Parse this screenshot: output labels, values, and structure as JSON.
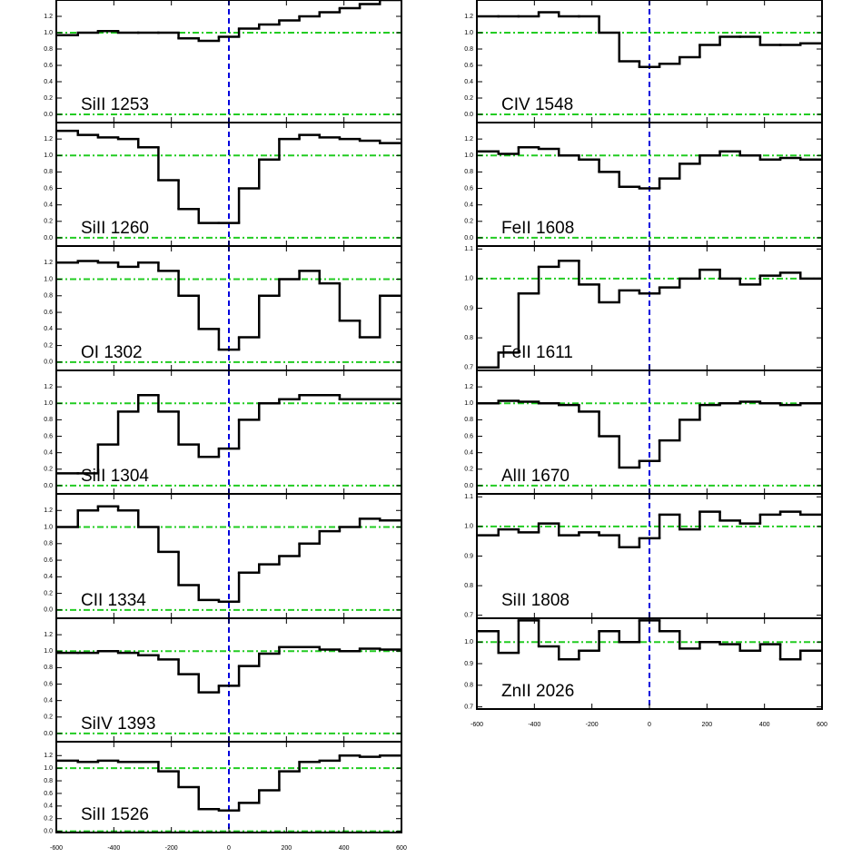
{
  "chart_data": [
    {
      "type": "step",
      "label": "SiII 1253",
      "xlim": [
        -600,
        600
      ],
      "ylim": [
        -0.1,
        1.4
      ],
      "xticks": [
        -600,
        -400,
        -200,
        0,
        200,
        400,
        600
      ],
      "yticks": [
        {
          "value": 0,
          "label": "0.0"
        },
        0.2,
        0.4,
        0.6,
        0.8,
        {
          "value": 1,
          "label": "1.0"
        },
        1.2
      ],
      "hlines": [
        0,
        1
      ],
      "vline": 0,
      "color": "#000000",
      "x": [
        -560,
        -490,
        -420,
        -350,
        -280,
        -210,
        -140,
        -70,
        0,
        70,
        140,
        210,
        280,
        350,
        420,
        490,
        560
      ],
      "values": [
        0.97,
        1.0,
        1.02,
        1.0,
        1.0,
        1.0,
        0.93,
        0.9,
        0.95,
        1.05,
        1.1,
        1.15,
        1.2,
        1.25,
        1.3,
        1.35,
        1.4
      ]
    },
    {
      "type": "step",
      "label": "SiII 1260",
      "xlim": [
        -600,
        600
      ],
      "ylim": [
        -0.1,
        1.4
      ],
      "xticks": [
        -600,
        -400,
        -200,
        0,
        200,
        400,
        600
      ],
      "yticks": [
        {
          "value": 0,
          "label": "0.0"
        },
        0.2,
        0.4,
        0.6,
        0.8,
        {
          "value": 1,
          "label": "1.0"
        },
        1.2
      ],
      "hlines": [
        0,
        1
      ],
      "vline": 0,
      "color": "#000000",
      "x": [
        -560,
        -490,
        -420,
        -350,
        -280,
        -210,
        -140,
        -70,
        0,
        70,
        140,
        210,
        280,
        350,
        420,
        490,
        560
      ],
      "values": [
        1.3,
        1.25,
        1.22,
        1.2,
        1.1,
        0.7,
        0.35,
        0.18,
        0.18,
        0.6,
        0.95,
        1.2,
        1.25,
        1.22,
        1.2,
        1.18,
        1.15
      ]
    },
    {
      "type": "step",
      "label": "OI 1302",
      "xlim": [
        -600,
        600
      ],
      "ylim": [
        -0.1,
        1.4
      ],
      "xticks": [
        -600,
        -400,
        -200,
        0,
        200,
        400,
        600
      ],
      "yticks": [
        {
          "value": 0,
          "label": "0.0"
        },
        0.2,
        0.4,
        0.6,
        0.8,
        {
          "value": 1,
          "label": "1.0"
        },
        1.2
      ],
      "hlines": [
        0,
        1
      ],
      "vline": 0,
      "color": "#000000",
      "x": [
        -560,
        -490,
        -420,
        -350,
        -280,
        -210,
        -140,
        -70,
        0,
        70,
        140,
        210,
        280,
        350,
        420,
        490,
        560
      ],
      "values": [
        1.2,
        1.22,
        1.2,
        1.15,
        1.2,
        1.1,
        0.8,
        0.4,
        0.15,
        0.3,
        0.8,
        1.0,
        1.1,
        0.95,
        0.5,
        0.3,
        0.8
      ]
    },
    {
      "type": "step",
      "label": "SiII 1304",
      "xlim": [
        -600,
        600
      ],
      "ylim": [
        -0.1,
        1.4
      ],
      "xticks": [
        -600,
        -400,
        -200,
        0,
        200,
        400,
        600
      ],
      "yticks": [
        {
          "value": 0,
          "label": "0.0"
        },
        0.2,
        0.4,
        0.6,
        0.8,
        {
          "value": 1,
          "label": "1.0"
        },
        1.2
      ],
      "hlines": [
        0,
        1
      ],
      "vline": 0,
      "color": "#000000",
      "x": [
        -560,
        -490,
        -420,
        -350,
        -280,
        -210,
        -140,
        -70,
        0,
        70,
        140,
        210,
        280,
        350,
        420,
        490,
        560
      ],
      "values": [
        0.15,
        0.15,
        0.5,
        0.9,
        1.1,
        0.9,
        0.5,
        0.35,
        0.45,
        0.8,
        1.0,
        1.05,
        1.1,
        1.1,
        1.05,
        1.05,
        1.05
      ]
    },
    {
      "type": "step",
      "label": "CII 1334",
      "xlim": [
        -600,
        600
      ],
      "ylim": [
        -0.1,
        1.4
      ],
      "xticks": [
        -600,
        -400,
        -200,
        0,
        200,
        400,
        600
      ],
      "yticks": [
        {
          "value": 0,
          "label": "0.0"
        },
        0.2,
        0.4,
        0.6,
        0.8,
        {
          "value": 1,
          "label": "1.0"
        },
        1.2
      ],
      "hlines": [
        0,
        1
      ],
      "vline": 0,
      "color": "#000000",
      "x": [
        -560,
        -490,
        -420,
        -350,
        -280,
        -210,
        -140,
        -70,
        0,
        70,
        140,
        210,
        280,
        350,
        420,
        490,
        560
      ],
      "values": [
        1.0,
        1.2,
        1.25,
        1.2,
        1.0,
        0.7,
        0.3,
        0.12,
        0.1,
        0.45,
        0.55,
        0.65,
        0.8,
        0.95,
        1.0,
        1.1,
        1.08
      ]
    },
    {
      "type": "step",
      "label": "SiIV 1393",
      "xlim": [
        -600,
        600
      ],
      "ylim": [
        -0.1,
        1.4
      ],
      "xticks": [
        -600,
        -400,
        -200,
        0,
        200,
        400,
        600
      ],
      "yticks": [
        {
          "value": 0,
          "label": "0.0"
        },
        0.2,
        0.4,
        0.6,
        0.8,
        {
          "value": 1,
          "label": "1.0"
        },
        1.2
      ],
      "hlines": [
        0,
        1
      ],
      "vline": 0,
      "color": "#000000",
      "x": [
        -560,
        -490,
        -420,
        -350,
        -280,
        -210,
        -140,
        -70,
        0,
        70,
        140,
        210,
        280,
        350,
        420,
        490,
        560
      ],
      "values": [
        0.98,
        0.98,
        1.0,
        0.98,
        0.95,
        0.9,
        0.72,
        0.5,
        0.58,
        0.82,
        0.97,
        1.05,
        1.05,
        1.02,
        1.0,
        1.03,
        1.02
      ]
    },
    {
      "type": "step",
      "label": "SiII 1526",
      "xlim": [
        -600,
        600
      ],
      "ylim": [
        -0.02,
        1.42
      ],
      "xticks": [
        -600,
        -400,
        -200,
        0,
        200,
        400,
        600
      ],
      "yticks": [
        {
          "value": 0,
          "label": "0.0"
        },
        0.2,
        0.4,
        0.6,
        0.8,
        {
          "value": 1,
          "label": "1.0"
        },
        1.2
      ],
      "hlines": [
        0,
        1
      ],
      "vline": 0,
      "color": "#000000",
      "x": [
        -560,
        -490,
        -420,
        -350,
        -280,
        -210,
        -140,
        -70,
        0,
        70,
        140,
        210,
        280,
        350,
        420,
        490,
        560
      ],
      "values": [
        1.12,
        1.1,
        1.12,
        1.1,
        1.1,
        0.95,
        0.7,
        0.35,
        0.33,
        0.45,
        0.65,
        0.95,
        1.1,
        1.12,
        1.2,
        1.18,
        1.2
      ]
    },
    {
      "type": "step",
      "label": "CIV 1548",
      "xlim": [
        -600,
        600
      ],
      "ylim": [
        -0.1,
        1.4
      ],
      "xticks": [
        -600,
        -400,
        -200,
        0,
        200,
        400,
        600
      ],
      "yticks": [
        {
          "value": 0,
          "label": "0.0"
        },
        0.2,
        0.4,
        0.6,
        0.8,
        {
          "value": 1,
          "label": "1.0"
        },
        1.2
      ],
      "hlines": [
        0,
        1
      ],
      "vline": 0,
      "color": "#000000",
      "x": [
        -560,
        -490,
        -420,
        -350,
        -280,
        -210,
        -140,
        -70,
        0,
        70,
        140,
        210,
        280,
        350,
        420,
        490,
        560
      ],
      "values": [
        1.2,
        1.2,
        1.2,
        1.25,
        1.2,
        1.2,
        1.0,
        0.65,
        0.58,
        0.62,
        0.7,
        0.85,
        0.95,
        0.95,
        0.85,
        0.85,
        0.87
      ]
    },
    {
      "type": "step",
      "label": "FeII 1608",
      "xlim": [
        -600,
        600
      ],
      "ylim": [
        -0.1,
        1.4
      ],
      "xticks": [
        -600,
        -400,
        -200,
        0,
        200,
        400,
        600
      ],
      "yticks": [
        {
          "value": 0,
          "label": "0.0"
        },
        0.2,
        0.4,
        0.6,
        0.8,
        {
          "value": 1,
          "label": "1.0"
        },
        1.2
      ],
      "hlines": [
        0,
        1
      ],
      "vline": 0,
      "color": "#000000",
      "x": [
        -560,
        -490,
        -420,
        -350,
        -280,
        -210,
        -140,
        -70,
        0,
        70,
        140,
        210,
        280,
        350,
        420,
        490,
        560
      ],
      "values": [
        1.05,
        1.02,
        1.1,
        1.08,
        1.0,
        0.95,
        0.8,
        0.62,
        0.6,
        0.72,
        0.9,
        1.0,
        1.05,
        1.0,
        0.95,
        0.97,
        0.95
      ]
    },
    {
      "type": "step",
      "label": "FeII 1611",
      "xlim": [
        -600,
        600
      ],
      "ylim": [
        0.69,
        1.11
      ],
      "xticks": [
        -600,
        -400,
        -200,
        0,
        200,
        400,
        600
      ],
      "yticks": [
        0.7,
        0.8,
        0.9,
        {
          "value": 1,
          "label": "1.0"
        },
        1.1
      ],
      "hlines": [
        1
      ],
      "vline": 0,
      "color": "#000000",
      "x": [
        -560,
        -490,
        -420,
        -350,
        -280,
        -210,
        -140,
        -70,
        0,
        70,
        140,
        210,
        280,
        350,
        420,
        490,
        560
      ],
      "values": [
        0.7,
        0.75,
        0.95,
        1.04,
        1.06,
        0.98,
        0.92,
        0.96,
        0.95,
        0.97,
        1.0,
        1.03,
        1.0,
        0.98,
        1.01,
        1.02,
        1.0
      ]
    },
    {
      "type": "step",
      "label": "AlII 1670",
      "xlim": [
        -600,
        600
      ],
      "ylim": [
        -0.1,
        1.4
      ],
      "xticks": [
        -600,
        -400,
        -200,
        0,
        200,
        400,
        600
      ],
      "yticks": [
        {
          "value": 0,
          "label": "0.0"
        },
        0.2,
        0.4,
        0.6,
        0.8,
        {
          "value": 1,
          "label": "1.0"
        },
        1.2
      ],
      "hlines": [
        0,
        1
      ],
      "vline": 0,
      "color": "#000000",
      "x": [
        -560,
        -490,
        -420,
        -350,
        -280,
        -210,
        -140,
        -70,
        0,
        70,
        140,
        210,
        280,
        350,
        420,
        490,
        560
      ],
      "values": [
        1.0,
        1.03,
        1.02,
        1.0,
        0.98,
        0.9,
        0.6,
        0.22,
        0.3,
        0.55,
        0.8,
        0.98,
        1.0,
        1.02,
        1.0,
        0.98,
        1.0
      ]
    },
    {
      "type": "step",
      "label": "SiII 1808",
      "xlim": [
        -600,
        600
      ],
      "ylim": [
        0.69,
        1.11
      ],
      "xticks": [
        -600,
        -400,
        -200,
        0,
        200,
        400,
        600
      ],
      "yticks": [
        0.7,
        0.8,
        0.9,
        {
          "value": 1,
          "label": "1.0"
        },
        1.1
      ],
      "hlines": [
        1
      ],
      "vline": 0,
      "color": "#000000",
      "x": [
        -560,
        -490,
        -420,
        -350,
        -280,
        -210,
        -140,
        -70,
        0,
        70,
        140,
        210,
        280,
        350,
        420,
        490,
        560
      ],
      "values": [
        0.97,
        0.99,
        0.98,
        1.01,
        0.97,
        0.98,
        0.97,
        0.93,
        0.96,
        1.04,
        0.99,
        1.05,
        1.02,
        1.01,
        1.04,
        1.05,
        1.04
      ]
    },
    {
      "type": "step",
      "label": "ZnII 2026",
      "xlim": [
        -600,
        600
      ],
      "ylim": [
        0.69,
        1.11
      ],
      "xticks": [
        -600,
        -400,
        -200,
        0,
        200,
        400,
        600
      ],
      "yticks": [
        0.7,
        0.8,
        0.9,
        {
          "value": 1,
          "label": "1.0"
        }
      ],
      "hlines": [
        1
      ],
      "vline": 0,
      "color": "#000000",
      "x": [
        -560,
        -490,
        -420,
        -350,
        -280,
        -210,
        -140,
        -70,
        0,
        70,
        140,
        210,
        280,
        350,
        420,
        490,
        560
      ],
      "values": [
        1.05,
        0.95,
        1.1,
        0.98,
        0.92,
        0.96,
        1.05,
        1.0,
        1.1,
        1.05,
        0.97,
        1.0,
        0.99,
        0.96,
        0.99,
        0.92,
        0.96
      ]
    }
  ]
}
